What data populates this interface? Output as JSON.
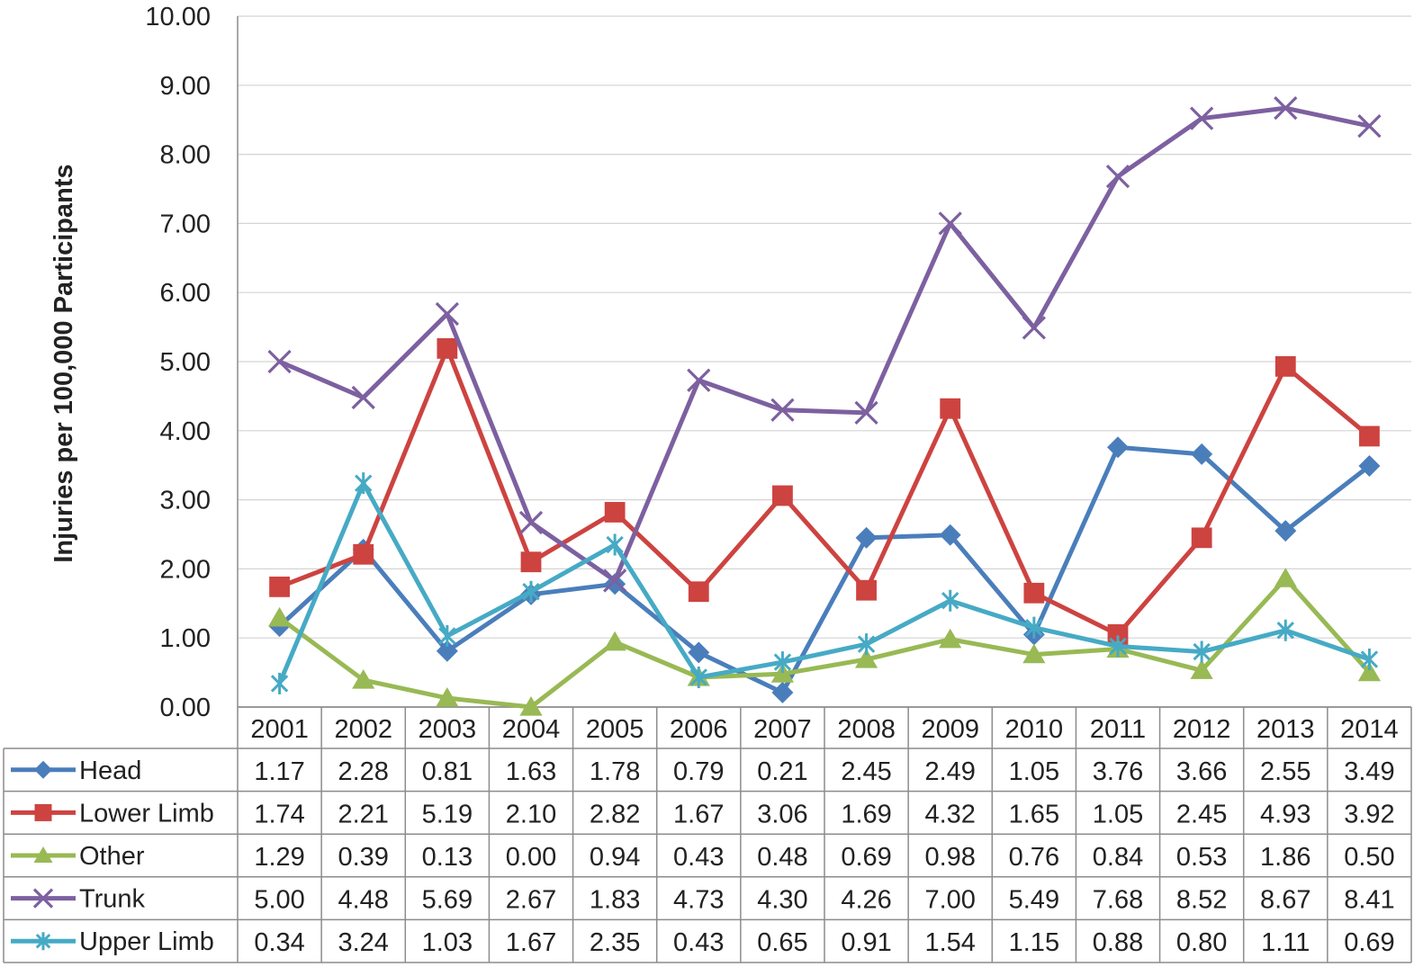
{
  "chart_data": {
    "type": "line",
    "title": "",
    "xlabel": "",
    "ylabel": "Injuries per 100,000 Participants",
    "ylim": [
      0,
      10
    ],
    "y_ticks": [
      "0.00",
      "1.00",
      "2.00",
      "3.00",
      "4.00",
      "5.00",
      "6.00",
      "7.00",
      "8.00",
      "9.00",
      "10.00"
    ],
    "grid": true,
    "legend_placement": "data-table-left",
    "categories": [
      "2001",
      "2002",
      "2003",
      "2004",
      "2005",
      "2006",
      "2007",
      "2008",
      "2009",
      "2010",
      "2011",
      "2012",
      "2013",
      "2014"
    ],
    "series": [
      {
        "name": "Head",
        "color": "#4a7ebb",
        "marker": "diamond",
        "values": [
          1.17,
          2.28,
          0.81,
          1.63,
          1.78,
          0.79,
          0.21,
          2.45,
          2.49,
          1.05,
          3.76,
          3.66,
          2.55,
          3.49
        ],
        "labels": [
          "1.17",
          "2.28",
          "0.81",
          "1.63",
          "1.78",
          "0.79",
          "0.21",
          "2.45",
          "2.49",
          "1.05",
          "3.76",
          "3.66",
          "2.55",
          "3.49"
        ]
      },
      {
        "name": "Lower Limb",
        "color": "#cd4340",
        "marker": "square",
        "values": [
          1.74,
          2.21,
          5.19,
          2.1,
          2.82,
          1.67,
          3.06,
          1.69,
          4.32,
          1.65,
          1.05,
          2.45,
          4.93,
          3.92
        ],
        "labels": [
          "1.74",
          "2.21",
          "5.19",
          "2.10",
          "2.82",
          "1.67",
          "3.06",
          "1.69",
          "4.32",
          "1.65",
          "1.05",
          "2.45",
          "4.93",
          "3.92"
        ]
      },
      {
        "name": "Other",
        "color": "#98b954",
        "marker": "triangle",
        "values": [
          1.29,
          0.39,
          0.13,
          0.0,
          0.94,
          0.43,
          0.48,
          0.69,
          0.98,
          0.76,
          0.84,
          0.53,
          1.86,
          0.5
        ],
        "labels": [
          "1.29",
          "0.39",
          "0.13",
          "0.00",
          "0.94",
          "0.43",
          "0.48",
          "0.69",
          "0.98",
          "0.76",
          "0.84",
          "0.53",
          "1.86",
          "0.50"
        ]
      },
      {
        "name": "Trunk",
        "color": "#7d60a0",
        "marker": "x",
        "values": [
          5.0,
          4.48,
          5.69,
          2.67,
          1.83,
          4.73,
          4.3,
          4.26,
          7.0,
          5.49,
          7.68,
          8.52,
          8.67,
          8.41
        ],
        "labels": [
          "5.00",
          "4.48",
          "5.69",
          "2.67",
          "1.83",
          "4.73",
          "4.30",
          "4.26",
          "7.00",
          "5.49",
          "7.68",
          "8.52",
          "8.67",
          "8.41"
        ]
      },
      {
        "name": "Upper Limb",
        "color": "#46aac5",
        "marker": "star",
        "values": [
          0.34,
          3.24,
          1.03,
          1.67,
          2.35,
          0.43,
          0.65,
          0.91,
          1.54,
          1.15,
          0.88,
          0.8,
          1.11,
          0.69
        ],
        "labels": [
          "0.34",
          "3.24",
          "1.03",
          "1.67",
          "2.35",
          "0.43",
          "0.65",
          "0.91",
          "1.54",
          "1.15",
          "0.88",
          "0.80",
          "1.11",
          "0.69"
        ]
      }
    ]
  }
}
